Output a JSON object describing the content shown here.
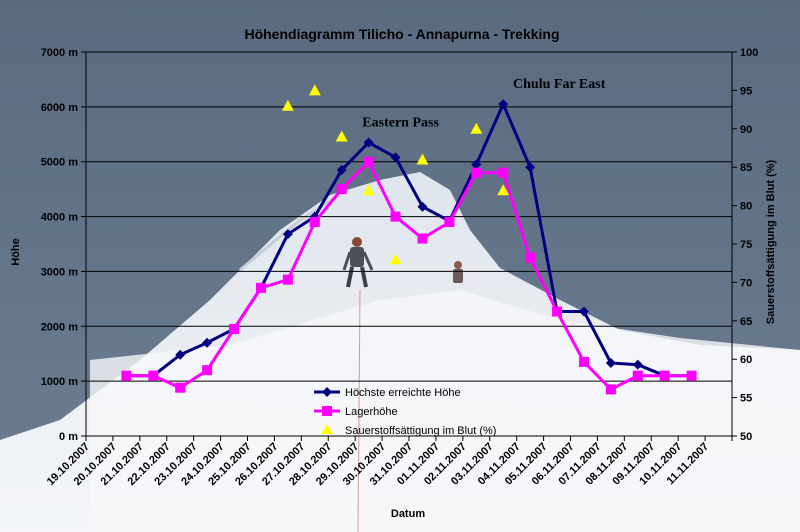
{
  "chart_data": {
    "type": "line",
    "title": "Höhendiagramm Tilicho - Annapurna - Trekking",
    "xlabel": "Datum",
    "ylabel": "Höhe",
    "y2label": "Sauerstoffsättigung im Blut (%)",
    "categories": [
      "19.10.2007",
      "20.10.2007",
      "21.10.2007",
      "22.10.2007",
      "23.10.2007",
      "24.10.2007",
      "25.10.2007",
      "26.10.2007",
      "27.10.2007",
      "28.10.2007",
      "29.10.2007",
      "30.10.2007",
      "31.10.2007",
      "01.11.2007",
      "02.11.2007",
      "03.11.2007",
      "04.11.2007",
      "05.11.2007",
      "06.11.2007",
      "07.11.2007",
      "08.11.2007",
      "09.11.2007",
      "10.11.2007",
      "11.11.2007"
    ],
    "y_ticks": [
      "0 m",
      "1000 m",
      "2000 m",
      "3000 m",
      "4000 m",
      "5000 m",
      "6000 m",
      "7000 m"
    ],
    "y2_ticks": [
      "50",
      "55",
      "60",
      "65",
      "70",
      "75",
      "80",
      "85",
      "90",
      "95",
      "100"
    ],
    "ylim": [
      0,
      7000
    ],
    "y2lim": [
      50,
      100
    ],
    "grid": "horizontal",
    "legend_position": "bottom-center",
    "series": [
      {
        "name": "Höchste erreichte Höhe",
        "axis": "left",
        "color": "#000080",
        "marker": "diamond",
        "values": [
          null,
          1100,
          1100,
          1480,
          1700,
          1950,
          2700,
          3680,
          4000,
          4850,
          5350,
          5080,
          4180,
          3920,
          4950,
          6050,
          4900,
          2270,
          2270,
          1330,
          1300,
          1100,
          1100,
          null
        ]
      },
      {
        "name": "Lagerhöhe",
        "axis": "left",
        "color": "#ff00ff",
        "marker": "square",
        "values": [
          null,
          1100,
          1100,
          880,
          1200,
          1950,
          2700,
          2850,
          3900,
          4500,
          5000,
          4000,
          3600,
          3900,
          4800,
          4800,
          3250,
          2270,
          1350,
          850,
          1100,
          1100,
          1100,
          null
        ]
      },
      {
        "name": "Sauerstoffsättigung im Blut (%)",
        "axis": "right",
        "color": "#ffff00",
        "marker": "triangle",
        "line": false,
        "values": [
          null,
          null,
          null,
          null,
          null,
          null,
          null,
          93,
          95,
          89,
          82,
          73,
          86,
          null,
          90,
          82,
          null,
          null,
          null,
          null,
          null,
          null,
          null,
          null
        ]
      }
    ],
    "annotations": [
      {
        "text": "Eastern Pass",
        "category": "29.10.2007"
      },
      {
        "text": "Chulu Far East",
        "category": "03.11.2007"
      }
    ]
  },
  "colors": {
    "background": "#5f6f84",
    "grid": "#000000",
    "snow": "#eef1f5"
  }
}
